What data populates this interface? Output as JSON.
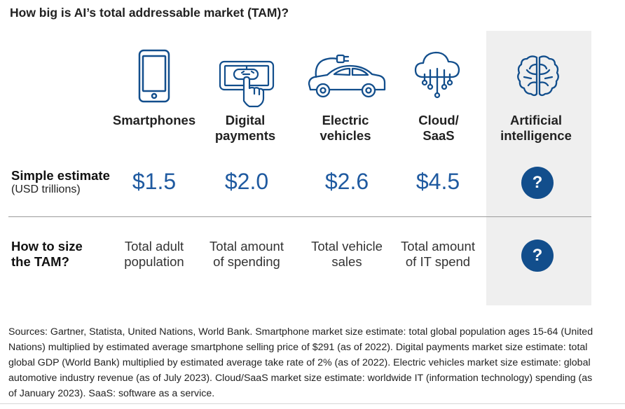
{
  "title": "How big is AI’s total addressable market (TAM)?",
  "columns": [
    {
      "label_line1": "Smartphones",
      "label_line2": "",
      "icon": "smartphone-icon",
      "value": "$1.5",
      "method_line1": "Total adult",
      "method_line2": "population"
    },
    {
      "label_line1": "Digital",
      "label_line2": "payments",
      "icon": "digital-payment-icon",
      "value": "$2.0",
      "method_line1": "Total amount",
      "method_line2": "of spending"
    },
    {
      "label_line1": "Electric",
      "label_line2": "vehicles",
      "icon": "electric-car-icon",
      "value": "$2.6",
      "method_line1": "Total vehicle",
      "method_line2": "sales"
    },
    {
      "label_line1": "Cloud/",
      "label_line2": "SaaS",
      "icon": "cloud-icon",
      "value": "$4.5",
      "method_line1": "Total amount",
      "method_line2": "of IT spend"
    },
    {
      "label_line1": "Artificial",
      "label_line2": "intelligence",
      "icon": "brain-icon",
      "value": "?",
      "method_line1": "?",
      "method_line2": ""
    }
  ],
  "rows": {
    "estimate_label": "Simple estimate",
    "estimate_sub": "(USD trillions)",
    "method_label_line1": "How to size",
    "method_label_line2": "the TAM?"
  },
  "sources": "Sources: Gartner, Statista, United Nations, World Bank. Smartphone market size estimate: total global population ages 15-64 (United Nations) multiplied by estimated average smartphone selling price of $291 (as of 2022). Digital payments market size estimate: total global GDP (World Bank) multiplied by estimated average take rate of 2% (as of 2022). Electric vehicles market size estimate: global automotive industry revenue (as of July 2023). Cloud/SaaS market size estimate: worldwide IT (information technology) spending (as of January 2023). SaaS: software as a service.",
  "colors": {
    "accent": "#1f5aa0",
    "badge": "#124e8c",
    "highlight_bg": "#efefef",
    "icon_stroke": "#124e8c"
  }
}
